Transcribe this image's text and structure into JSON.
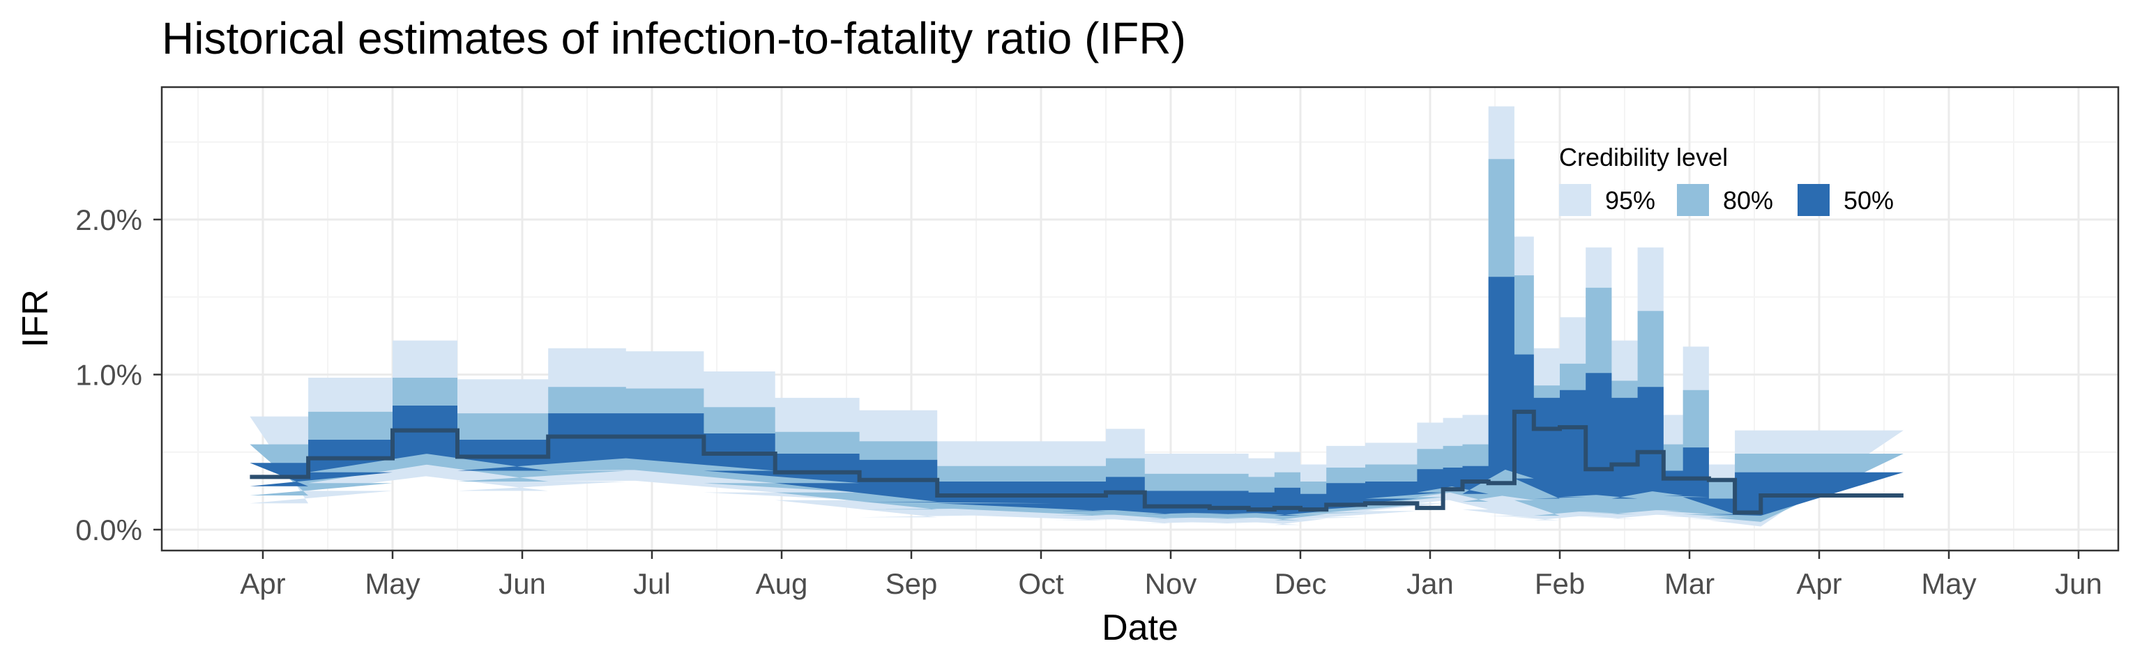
{
  "chart_data": {
    "type": "area",
    "title": "Historical estimates of infection-to-fatality ratio (IFR)",
    "xlabel": "Date",
    "ylabel": "IFR",
    "x_tick_labels": [
      "Apr",
      "May",
      "Jun",
      "Jul",
      "Aug",
      "Sep",
      "Oct",
      "Nov",
      "Dec",
      "Jan",
      "Feb",
      "Mar",
      "Apr",
      "May",
      "Jun"
    ],
    "y_tick_labels": [
      "0.0%",
      "1.0%",
      "2.0%"
    ],
    "ylim": [
      -0.13,
      2.85
    ],
    "grid": true,
    "legend": {
      "title": "Credibility level",
      "placement": "top-right",
      "entries": [
        {
          "label": "95%",
          "color": "#d6e5f4"
        },
        {
          "label": "80%",
          "color": "#91bfdc"
        },
        {
          "label": "50%",
          "color": "#2b6cb1"
        }
      ]
    },
    "median_color": "#2b4e6f",
    "x_unit": "months since start of April (first axis year)",
    "series": [
      {
        "name": "95%",
        "type": "step-band",
        "edges": [
          [
            -0.1,
            0.35
          ],
          [
            0.35,
            1.0
          ],
          [
            1.0,
            1.5
          ],
          [
            1.5,
            2.2
          ],
          [
            2.2,
            2.8
          ],
          [
            2.8,
            3.4
          ],
          [
            3.4,
            3.95
          ],
          [
            3.95,
            4.6
          ],
          [
            4.6,
            5.2
          ],
          [
            5.2,
            6.1
          ],
          [
            6.1,
            6.5
          ],
          [
            6.5,
            6.8
          ],
          [
            6.8,
            7.0
          ],
          [
            7.0,
            7.3
          ],
          [
            7.3,
            7.6
          ],
          [
            7.6,
            7.8
          ],
          [
            7.8,
            8.0
          ],
          [
            8.0,
            8.2
          ],
          [
            8.2,
            8.5
          ],
          [
            8.5,
            8.9
          ],
          [
            8.9,
            9.1
          ],
          [
            9.1,
            9.25
          ],
          [
            9.25,
            9.45
          ],
          [
            9.45,
            9.65
          ],
          [
            9.65,
            9.8
          ],
          [
            9.8,
            10.0
          ],
          [
            10.0,
            10.2
          ],
          [
            10.2,
            10.4
          ],
          [
            10.4,
            10.6
          ],
          [
            10.6,
            10.8
          ],
          [
            10.8,
            10.95
          ],
          [
            10.95,
            11.15
          ],
          [
            11.15,
            11.35
          ],
          [
            11.35,
            11.55
          ],
          [
            11.55,
            12.65
          ]
        ],
        "lower": [
          0.17,
          0.25,
          0.37,
          0.25,
          0.31,
          0.32,
          0.24,
          0.19,
          0.08,
          0.1,
          0.06,
          0.07,
          0.04,
          0.05,
          0.04,
          0.05,
          0.03,
          0.07,
          0.08,
          0.12,
          0.17,
          0.2,
          0.13,
          0.09,
          0.08,
          0.06,
          0.09,
          0.08,
          0.07,
          0.1,
          0.09,
          0.07,
          0.06,
          0.02,
          0.02
        ],
        "upper": [
          0.73,
          0.98,
          1.22,
          0.97,
          1.17,
          1.15,
          1.02,
          0.85,
          0.77,
          0.57,
          0.57,
          0.65,
          0.49,
          0.49,
          0.49,
          0.46,
          0.5,
          0.42,
          0.54,
          0.56,
          0.69,
          0.72,
          0.74,
          2.73,
          1.89,
          1.17,
          1.37,
          1.82,
          1.22,
          1.82,
          0.74,
          1.18,
          0.42,
          0.64,
          0.64
        ]
      },
      {
        "name": "80%",
        "type": "step-band",
        "edges": [
          [
            -0.1,
            0.35
          ],
          [
            0.35,
            1.0
          ],
          [
            1.0,
            1.5
          ],
          [
            1.5,
            2.2
          ],
          [
            2.2,
            2.8
          ],
          [
            2.8,
            3.4
          ],
          [
            3.4,
            3.95
          ],
          [
            3.95,
            4.6
          ],
          [
            4.6,
            5.2
          ],
          [
            5.2,
            6.1
          ],
          [
            6.1,
            6.5
          ],
          [
            6.5,
            6.8
          ],
          [
            6.8,
            7.0
          ],
          [
            7.0,
            7.3
          ],
          [
            7.3,
            7.6
          ],
          [
            7.6,
            7.8
          ],
          [
            7.8,
            8.0
          ],
          [
            8.0,
            8.2
          ],
          [
            8.2,
            8.5
          ],
          [
            8.5,
            8.9
          ],
          [
            8.9,
            9.1
          ],
          [
            9.1,
            9.25
          ],
          [
            9.25,
            9.45
          ],
          [
            9.45,
            9.65
          ],
          [
            9.65,
            9.8
          ],
          [
            9.8,
            10.0
          ],
          [
            10.0,
            10.2
          ],
          [
            10.2,
            10.4
          ],
          [
            10.4,
            10.6
          ],
          [
            10.6,
            10.8
          ],
          [
            10.8,
            10.95
          ],
          [
            10.95,
            11.15
          ],
          [
            11.15,
            11.35
          ],
          [
            11.35,
            11.55
          ],
          [
            11.55,
            12.65
          ]
        ],
        "lower": [
          0.22,
          0.3,
          0.45,
          0.31,
          0.38,
          0.39,
          0.3,
          0.24,
          0.13,
          0.14,
          0.09,
          0.1,
          0.07,
          0.08,
          0.07,
          0.08,
          0.06,
          0.1,
          0.11,
          0.16,
          0.21,
          0.25,
          0.18,
          0.23,
          0.19,
          0.09,
          0.12,
          0.11,
          0.1,
          0.13,
          0.12,
          0.1,
          0.08,
          0.05,
          0.05
        ],
        "upper": [
          0.55,
          0.76,
          0.98,
          0.75,
          0.92,
          0.91,
          0.79,
          0.63,
          0.57,
          0.41,
          0.41,
          0.46,
          0.36,
          0.36,
          0.36,
          0.34,
          0.37,
          0.31,
          0.4,
          0.42,
          0.52,
          0.54,
          0.55,
          2.39,
          1.64,
          0.93,
          1.07,
          1.56,
          0.96,
          1.41,
          0.55,
          0.9,
          0.31,
          0.49,
          0.49
        ]
      },
      {
        "name": "50%",
        "type": "step-band",
        "edges": [
          [
            -0.1,
            0.35
          ],
          [
            0.35,
            1.0
          ],
          [
            1.0,
            1.5
          ],
          [
            1.5,
            2.2
          ],
          [
            2.2,
            2.8
          ],
          [
            2.8,
            3.4
          ],
          [
            3.4,
            3.95
          ],
          [
            3.95,
            4.6
          ],
          [
            4.6,
            5.2
          ],
          [
            5.2,
            6.1
          ],
          [
            6.1,
            6.5
          ],
          [
            6.5,
            6.8
          ],
          [
            6.8,
            7.0
          ],
          [
            7.0,
            7.3
          ],
          [
            7.3,
            7.6
          ],
          [
            7.6,
            7.8
          ],
          [
            7.8,
            8.0
          ],
          [
            8.0,
            8.2
          ],
          [
            8.2,
            8.5
          ],
          [
            8.5,
            8.9
          ],
          [
            8.9,
            9.1
          ],
          [
            9.1,
            9.25
          ],
          [
            9.25,
            9.45
          ],
          [
            9.45,
            9.65
          ],
          [
            9.65,
            9.8
          ],
          [
            9.8,
            10.0
          ],
          [
            10.0,
            10.2
          ],
          [
            10.2,
            10.4
          ],
          [
            10.4,
            10.6
          ],
          [
            10.6,
            10.8
          ],
          [
            10.8,
            10.95
          ],
          [
            10.95,
            11.15
          ],
          [
            11.15,
            11.35
          ],
          [
            11.35,
            11.55
          ],
          [
            11.55,
            12.65
          ]
        ],
        "lower": [
          0.28,
          0.37,
          0.52,
          0.38,
          0.46,
          0.46,
          0.38,
          0.3,
          0.18,
          0.17,
          0.12,
          0.13,
          0.1,
          0.11,
          0.1,
          0.11,
          0.09,
          0.12,
          0.15,
          0.2,
          0.24,
          0.29,
          0.23,
          0.42,
          0.33,
          0.2,
          0.21,
          0.23,
          0.2,
          0.26,
          0.22,
          0.21,
          0.1,
          0.09,
          0.09
        ],
        "upper": [
          0.43,
          0.58,
          0.8,
          0.58,
          0.75,
          0.75,
          0.62,
          0.49,
          0.45,
          0.31,
          0.31,
          0.34,
          0.25,
          0.25,
          0.25,
          0.24,
          0.27,
          0.23,
          0.3,
          0.31,
          0.39,
          0.4,
          0.41,
          1.63,
          1.13,
          0.85,
          0.9,
          1.01,
          0.85,
          0.92,
          0.38,
          0.53,
          0.2,
          0.37,
          0.37
        ]
      },
      {
        "name": "median",
        "type": "step-line",
        "edges": [
          [
            -0.1,
            0.35
          ],
          [
            0.35,
            1.0
          ],
          [
            1.0,
            1.5
          ],
          [
            1.5,
            2.2
          ],
          [
            2.2,
            2.8
          ],
          [
            2.8,
            3.4
          ],
          [
            3.4,
            3.95
          ],
          [
            3.95,
            4.6
          ],
          [
            4.6,
            5.2
          ],
          [
            5.2,
            6.1
          ],
          [
            6.1,
            6.5
          ],
          [
            6.5,
            6.8
          ],
          [
            6.8,
            7.0
          ],
          [
            7.0,
            7.3
          ],
          [
            7.3,
            7.6
          ],
          [
            7.6,
            7.8
          ],
          [
            7.8,
            8.0
          ],
          [
            8.0,
            8.2
          ],
          [
            8.2,
            8.5
          ],
          [
            8.5,
            8.9
          ],
          [
            8.9,
            9.1
          ],
          [
            9.1,
            9.25
          ],
          [
            9.25,
            9.45
          ],
          [
            9.45,
            9.65
          ],
          [
            9.65,
            9.8
          ],
          [
            9.8,
            10.0
          ],
          [
            10.0,
            10.2
          ],
          [
            10.2,
            10.4
          ],
          [
            10.4,
            10.6
          ],
          [
            10.6,
            10.8
          ],
          [
            10.8,
            10.95
          ],
          [
            10.95,
            11.15
          ],
          [
            11.15,
            11.35
          ],
          [
            11.35,
            11.55
          ],
          [
            11.55,
            12.65
          ]
        ],
        "values": [
          0.34,
          0.46,
          0.64,
          0.47,
          0.6,
          0.6,
          0.49,
          0.37,
          0.32,
          0.22,
          0.22,
          0.24,
          0.15,
          0.15,
          0.14,
          0.13,
          0.14,
          0.13,
          0.16,
          0.17,
          0.14,
          0.26,
          0.31,
          0.3,
          0.76,
          0.65,
          0.66,
          0.39,
          0.42,
          0.5,
          0.33,
          0.33,
          0.32,
          0.11,
          0.22
        ]
      }
    ]
  }
}
